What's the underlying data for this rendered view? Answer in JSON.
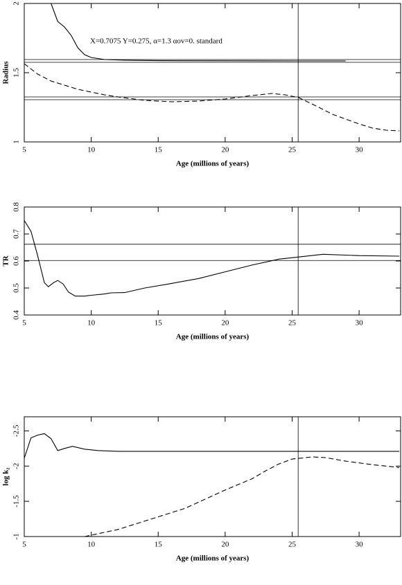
{
  "chart_data": [
    {
      "type": "line",
      "xlabel": "Age (millions of years)",
      "ylabel": "Radius",
      "annotation": "X=0.7075   Y=0.275, α=1.3 αov=0. standard",
      "xlim": [
        5,
        33.1
      ],
      "xticks": [
        5,
        10,
        15,
        20,
        25,
        30
      ],
      "ylim": [
        1,
        2
      ],
      "yticks": [
        1,
        1.5,
        2
      ],
      "hlines": [
        1.595,
        1.575,
        1.325,
        1.305
      ],
      "vline": 25.45,
      "series": [
        {
          "color": "#000000",
          "dashed": false,
          "x": [
            7,
            7.5,
            8,
            8.5,
            9,
            9.5,
            10,
            11,
            12.5,
            15,
            20,
            25.5,
            29
          ],
          "values": [
            2.0,
            1.87,
            1.83,
            1.77,
            1.68,
            1.63,
            1.61,
            1.595,
            1.59,
            1.587,
            1.586,
            1.585,
            1.585
          ]
        },
        {
          "color": "#000000",
          "dashed": true,
          "x": [
            5,
            6,
            7,
            8,
            9,
            10,
            11,
            12,
            14,
            16,
            18,
            20,
            22,
            23.5,
            24.5,
            25.5,
            27,
            28,
            30,
            31,
            32,
            33
          ],
          "values": [
            1.565,
            1.49,
            1.44,
            1.41,
            1.38,
            1.36,
            1.34,
            1.325,
            1.3,
            1.29,
            1.295,
            1.31,
            1.335,
            1.35,
            1.34,
            1.32,
            1.25,
            1.2,
            1.13,
            1.1,
            1.085,
            1.08
          ]
        }
      ]
    },
    {
      "type": "line",
      "xlabel": "Age (millions of years)",
      "ylabel": "TR",
      "xlim": [
        5,
        33.1
      ],
      "xticks": [
        5,
        10,
        15,
        20,
        25,
        30
      ],
      "ylim": [
        0.4,
        0.8
      ],
      "yticks": [
        0.4,
        0.5,
        0.6,
        0.7,
        0.8
      ],
      "hlines": [
        0.662,
        0.602
      ],
      "vline": 25.45,
      "series": [
        {
          "color": "#000000",
          "dashed": false,
          "x": [
            5,
            5.5,
            6,
            6.5,
            6.8,
            7.2,
            7.5,
            7.9,
            8.3,
            8.8,
            9.5,
            10,
            11,
            11.5,
            12.5,
            14,
            16,
            18,
            20,
            22,
            24,
            25.5,
            27.3,
            30,
            33
          ],
          "values": [
            0.75,
            0.71,
            0.62,
            0.52,
            0.505,
            0.52,
            0.528,
            0.515,
            0.485,
            0.47,
            0.47,
            0.473,
            0.478,
            0.482,
            0.483,
            0.5,
            0.517,
            0.535,
            0.56,
            0.585,
            0.607,
            0.615,
            0.625,
            0.62,
            0.618
          ]
        }
      ]
    },
    {
      "type": "line",
      "xlabel": "Age (millions of years)",
      "ylabel": "log k₂",
      "xlim": [
        5,
        33.1
      ],
      "xticks": [
        5,
        10,
        15,
        20,
        25,
        30
      ],
      "ylim": [
        -1,
        -2.7
      ],
      "yticks": [
        -1,
        -1.5,
        -2,
        -2.5
      ],
      "vline": 25.45,
      "series": [
        {
          "color": "#000000",
          "dashed": false,
          "x": [
            5,
            5.5,
            6,
            6.5,
            7,
            7.5,
            8,
            8.6,
            9.5,
            10.5,
            12,
            33
          ],
          "values": [
            -2.11,
            -2.4,
            -2.44,
            -2.46,
            -2.39,
            -2.22,
            -2.25,
            -2.28,
            -2.24,
            -2.22,
            -2.21,
            -2.21
          ]
        },
        {
          "color": "#000000",
          "dashed": true,
          "x": [
            9.5,
            10,
            12,
            15,
            17,
            20,
            22,
            23,
            24,
            25,
            26.5,
            27.5,
            29,
            31,
            33
          ],
          "values": [
            -1.0,
            -1.02,
            -1.1,
            -1.28,
            -1.4,
            -1.66,
            -1.82,
            -1.93,
            -2.03,
            -2.1,
            -2.13,
            -2.12,
            -2.07,
            -2.02,
            -1.98
          ]
        }
      ]
    }
  ]
}
